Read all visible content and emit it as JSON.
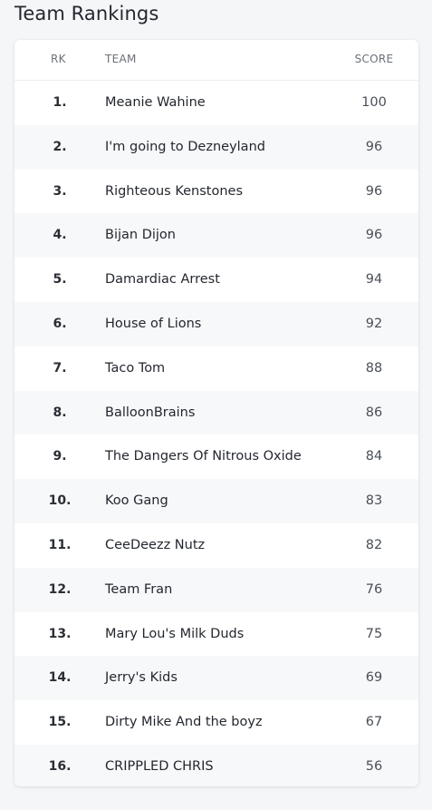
{
  "page": {
    "title": "Team Rankings"
  },
  "table": {
    "headers": {
      "rank": "RK",
      "team": "TEAM",
      "score": "SCORE"
    },
    "rows": [
      {
        "rank": "1.",
        "team": "Meanie Wahine",
        "score": "100"
      },
      {
        "rank": "2.",
        "team": "I'm going to Dezneyland",
        "score": "96"
      },
      {
        "rank": "3.",
        "team": "Righteous Kenstones",
        "score": "96"
      },
      {
        "rank": "4.",
        "team": "Bijan Dijon",
        "score": "96"
      },
      {
        "rank": "5.",
        "team": "Damardiac Arrest",
        "score": "94"
      },
      {
        "rank": "6.",
        "team": "House of Lions",
        "score": "92"
      },
      {
        "rank": "7.",
        "team": "Taco Tom",
        "score": "88"
      },
      {
        "rank": "8.",
        "team": "BalloonBrains",
        "score": "86"
      },
      {
        "rank": "9.",
        "team": "The Dangers Of Nitrous Oxide",
        "score": "84"
      },
      {
        "rank": "10.",
        "team": "Koo Gang",
        "score": "83"
      },
      {
        "rank": "11.",
        "team": "CeeDeezz Nutz",
        "score": "82"
      },
      {
        "rank": "12.",
        "team": "Team Fran",
        "score": "76"
      },
      {
        "rank": "13.",
        "team": "Mary Lou's Milk Duds",
        "score": "75"
      },
      {
        "rank": "14.",
        "team": "Jerry's Kids",
        "score": "69"
      },
      {
        "rank": "15.",
        "team": "Dirty Mike And the boyz",
        "score": "67"
      },
      {
        "rank": "16.",
        "team": "CRIPPLED CHRIS",
        "score": "56"
      }
    ]
  }
}
